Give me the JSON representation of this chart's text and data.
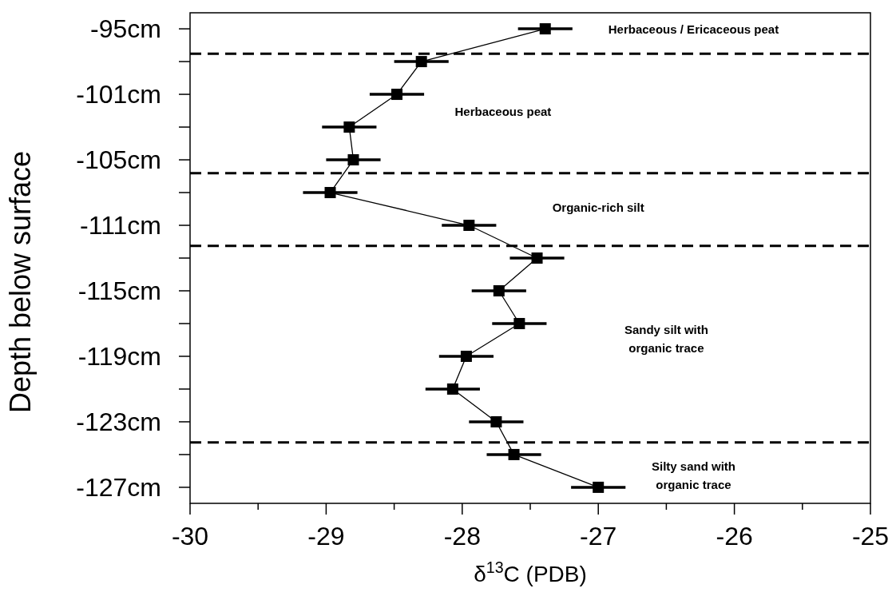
{
  "chart_data": {
    "type": "line",
    "orientation": "horizontal",
    "xlabel": "δ$^{13}$C (PDB)",
    "ylabel": "Depth below surface",
    "categories": [
      "-95cm",
      null,
      "-101cm",
      null,
      "-105cm",
      null,
      "-111cm",
      null,
      "-115cm",
      null,
      "-119cm",
      null,
      "-123cm",
      null,
      "-127cm"
    ],
    "series": [
      {
        "color": "#000000",
        "values": [
          -27.39,
          -28.3,
          -28.48,
          -28.83,
          -28.8,
          -28.97,
          -27.95,
          -27.45,
          -27.73,
          -27.58,
          -27.97,
          -28.07,
          -27.75,
          -27.62,
          -27.0
        ],
        "errors": [
          0.2,
          0.2,
          0.2,
          0.2,
          0.2,
          0.2,
          0.2,
          0.2,
          0.2,
          0.2,
          0.2,
          0.2,
          0.2,
          0.2,
          0.2
        ]
      }
    ],
    "xlim": [
      -30,
      -25
    ],
    "xticks": [
      -30,
      {
        "value": -29.5,
        "label": null
      },
      -29,
      {
        "value": -28.5,
        "label": null
      },
      -28,
      {
        "value": -27.5,
        "label": null
      },
      -27,
      {
        "value": -26.5,
        "label": null
      },
      -26,
      {
        "value": -25.5,
        "label": null
      },
      -25
    ],
    "annotations": [
      "Herbaceous / Ericaceous peat",
      "Herbaceous peat",
      "Organic-rich silt",
      "Sandy silt with\norganic trace",
      "Silty sand with\norganic trace"
    ],
    "marker": "square",
    "line_style": "solid",
    "grid": false
  }
}
